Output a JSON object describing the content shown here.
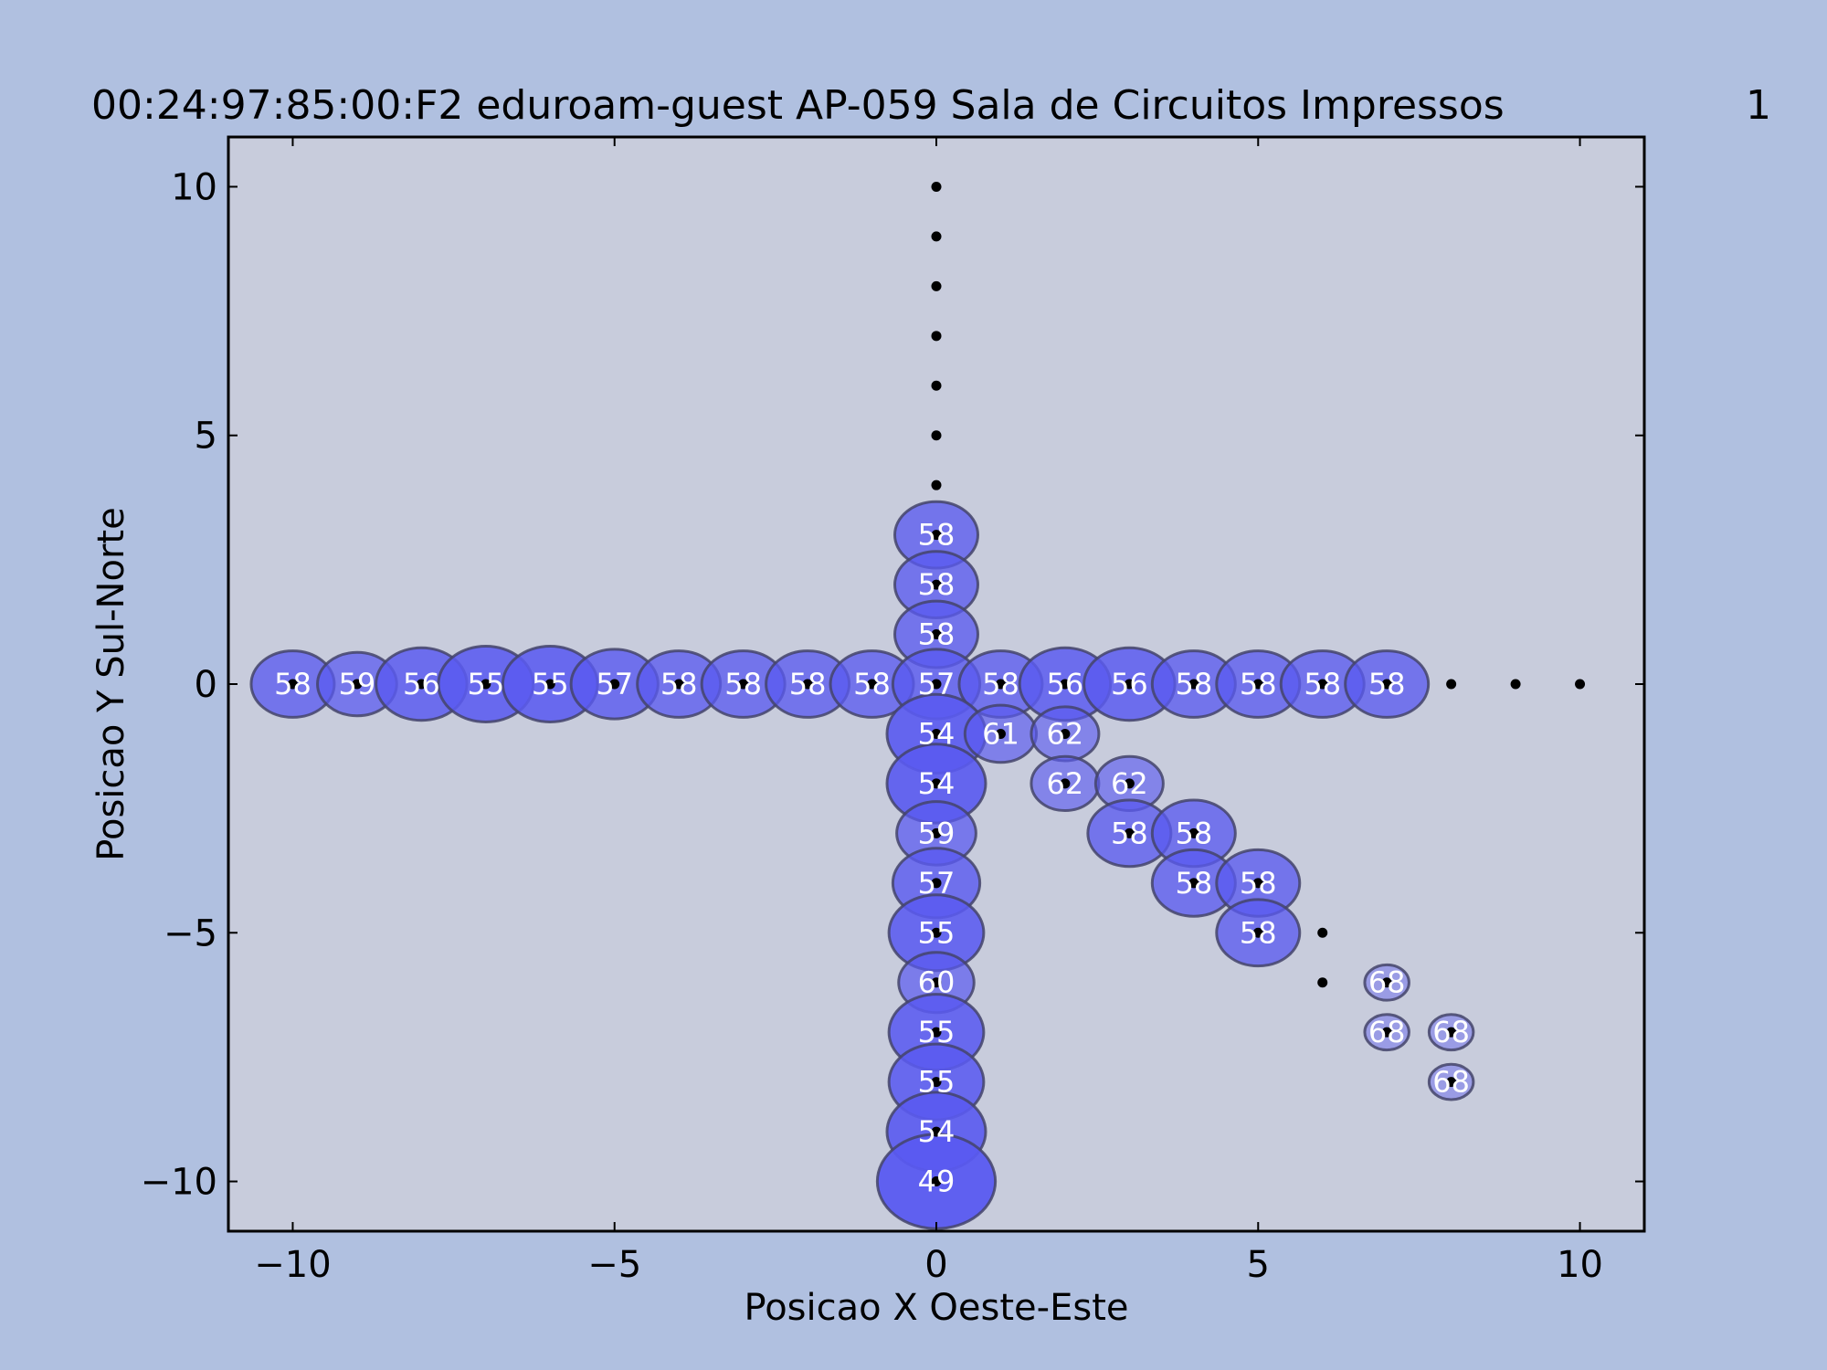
{
  "chart_data": {
    "type": "scatter",
    "title": "00:24:97:85:00:F2 eduroam-guest AP-059 Sala de Circuitos Impressos",
    "title_suffix": "1",
    "xlabel": "Posicao X Oeste-Este",
    "ylabel": "Posicao Y Sul-Norte",
    "xlim": [
      -11,
      11
    ],
    "ylim": [
      -11,
      11
    ],
    "xticks": [
      -10,
      -5,
      0,
      5,
      10
    ],
    "yticks": [
      -10,
      -5,
      0,
      5,
      10
    ],
    "xtick_labels": [
      "−10",
      "−5",
      "0",
      "5",
      "10"
    ],
    "ytick_labels": [
      "−10",
      "−5",
      "0",
      "5",
      "10"
    ],
    "grid": false,
    "colors": {
      "figure_bg": "#b0c0e0",
      "plot_bg": "#c8ccdc",
      "bubble_fill": "#5a5af0",
      "bubble_edge": "#44446a",
      "dot": "#000000",
      "bubble_text": "#ffffff"
    },
    "measurement_points": [
      {
        "x": 0,
        "y": 10
      },
      {
        "x": 0,
        "y": 9
      },
      {
        "x": 0,
        "y": 8
      },
      {
        "x": 0,
        "y": 7
      },
      {
        "x": 0,
        "y": 6
      },
      {
        "x": 0,
        "y": 5
      },
      {
        "x": 0,
        "y": 4
      },
      {
        "x": 0,
        "y": 3
      },
      {
        "x": 0,
        "y": 2
      },
      {
        "x": 0,
        "y": 1
      },
      {
        "x": -10,
        "y": 0
      },
      {
        "x": -9,
        "y": 0
      },
      {
        "x": -8,
        "y": 0
      },
      {
        "x": -7,
        "y": 0
      },
      {
        "x": -6,
        "y": 0
      },
      {
        "x": -5,
        "y": 0
      },
      {
        "x": -4,
        "y": 0
      },
      {
        "x": -3,
        "y": 0
      },
      {
        "x": -2,
        "y": 0
      },
      {
        "x": -1,
        "y": 0
      },
      {
        "x": 0,
        "y": 0
      },
      {
        "x": 1,
        "y": 0
      },
      {
        "x": 2,
        "y": 0
      },
      {
        "x": 3,
        "y": 0
      },
      {
        "x": 4,
        "y": 0
      },
      {
        "x": 5,
        "y": 0
      },
      {
        "x": 6,
        "y": 0
      },
      {
        "x": 7,
        "y": 0
      },
      {
        "x": 8,
        "y": 0
      },
      {
        "x": 9,
        "y": 0
      },
      {
        "x": 10,
        "y": 0
      },
      {
        "x": 0,
        "y": -1
      },
      {
        "x": 0,
        "y": -2
      },
      {
        "x": 0,
        "y": -3
      },
      {
        "x": 0,
        "y": -4
      },
      {
        "x": 0,
        "y": -5
      },
      {
        "x": 0,
        "y": -6
      },
      {
        "x": 0,
        "y": -7
      },
      {
        "x": 0,
        "y": -8
      },
      {
        "x": 0,
        "y": -9
      },
      {
        "x": 0,
        "y": -10
      },
      {
        "x": 1,
        "y": -1
      },
      {
        "x": 2,
        "y": -1
      },
      {
        "x": 2,
        "y": -2
      },
      {
        "x": 3,
        "y": -2
      },
      {
        "x": 3,
        "y": -3
      },
      {
        "x": 4,
        "y": -3
      },
      {
        "x": 4,
        "y": -4
      },
      {
        "x": 5,
        "y": -4
      },
      {
        "x": 5,
        "y": -5
      },
      {
        "x": 6,
        "y": -5
      },
      {
        "x": 6,
        "y": -6
      },
      {
        "x": 7,
        "y": -6
      },
      {
        "x": 7,
        "y": -7
      },
      {
        "x": 8,
        "y": -7
      },
      {
        "x": 8,
        "y": -8
      }
    ],
    "bubbles": [
      {
        "x": 0,
        "y": 3,
        "value": 58
      },
      {
        "x": 0,
        "y": 2,
        "value": 58
      },
      {
        "x": 0,
        "y": 1,
        "value": 58
      },
      {
        "x": -10,
        "y": 0,
        "value": 58
      },
      {
        "x": -9,
        "y": 0,
        "value": 59
      },
      {
        "x": -8,
        "y": 0,
        "value": 56
      },
      {
        "x": -7,
        "y": 0,
        "value": 55
      },
      {
        "x": -6,
        "y": 0,
        "value": 55
      },
      {
        "x": -5,
        "y": 0,
        "value": 57
      },
      {
        "x": -4,
        "y": 0,
        "value": 58
      },
      {
        "x": -3,
        "y": 0,
        "value": 58
      },
      {
        "x": -2,
        "y": 0,
        "value": 58
      },
      {
        "x": -1,
        "y": 0,
        "value": 58
      },
      {
        "x": 0,
        "y": 0,
        "value": 57
      },
      {
        "x": 1,
        "y": 0,
        "value": 58
      },
      {
        "x": 2,
        "y": 0,
        "value": 56
      },
      {
        "x": 3,
        "y": 0,
        "value": 56
      },
      {
        "x": 4,
        "y": 0,
        "value": 58
      },
      {
        "x": 5,
        "y": 0,
        "value": 58
      },
      {
        "x": 6,
        "y": 0,
        "value": 58
      },
      {
        "x": 7,
        "y": 0,
        "value": 58
      },
      {
        "x": 0,
        "y": -1,
        "value": 54
      },
      {
        "x": 0,
        "y": -2,
        "value": 54
      },
      {
        "x": 0,
        "y": -3,
        "value": 59
      },
      {
        "x": 0,
        "y": -4,
        "value": 57
      },
      {
        "x": 0,
        "y": -5,
        "value": 55
      },
      {
        "x": 0,
        "y": -6,
        "value": 60
      },
      {
        "x": 0,
        "y": -7,
        "value": 55
      },
      {
        "x": 0,
        "y": -8,
        "value": 55
      },
      {
        "x": 0,
        "y": -9,
        "value": 54
      },
      {
        "x": 0,
        "y": -10,
        "value": 49
      },
      {
        "x": 1,
        "y": -1,
        "value": 61
      },
      {
        "x": 2,
        "y": -1,
        "value": 62
      },
      {
        "x": 2,
        "y": -2,
        "value": 62
      },
      {
        "x": 3,
        "y": -2,
        "value": 62
      },
      {
        "x": 3,
        "y": -3,
        "value": 58
      },
      {
        "x": 4,
        "y": -3,
        "value": 58
      },
      {
        "x": 4,
        "y": -4,
        "value": 58
      },
      {
        "x": 5,
        "y": -4,
        "value": 58
      },
      {
        "x": 5,
        "y": -5,
        "value": 58
      },
      {
        "x": 7,
        "y": -6,
        "value": 68
      },
      {
        "x": 7,
        "y": -7,
        "value": 68
      },
      {
        "x": 8,
        "y": -7,
        "value": 68
      },
      {
        "x": 8,
        "y": -8,
        "value": 68
      }
    ]
  }
}
